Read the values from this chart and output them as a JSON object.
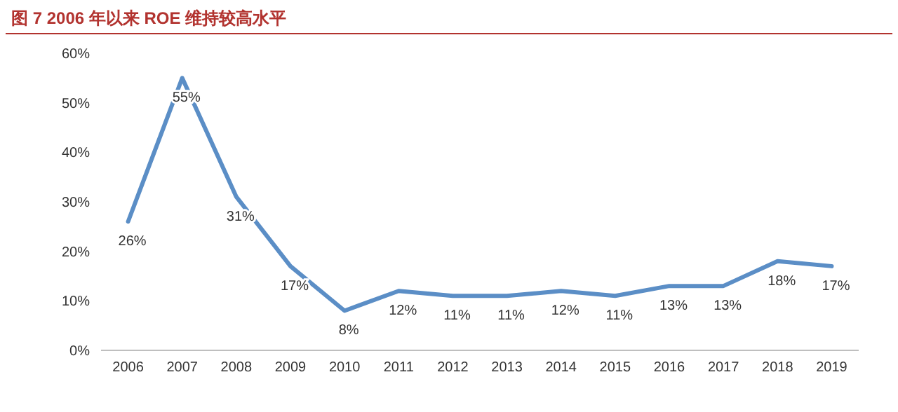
{
  "chart_data": {
    "type": "line",
    "title": "图 7 2006 年以来 ROE 维持较高水平",
    "categories": [
      "2006",
      "2007",
      "2008",
      "2009",
      "2010",
      "2011",
      "2012",
      "2013",
      "2014",
      "2015",
      "2016",
      "2017",
      "2018",
      "2019"
    ],
    "series": [
      {
        "color": "#5b8ec6",
        "values": [
          26,
          55,
          31,
          17,
          8,
          12,
          11,
          11,
          12,
          11,
          13,
          13,
          18,
          17
        ],
        "value_labels": [
          "26%",
          "55%",
          "31%",
          "17%",
          "8%",
          "12%",
          "11%",
          "11%",
          "12%",
          "11%",
          "13%",
          "13%",
          "18%",
          "17%"
        ]
      }
    ],
    "ylim": [
      0,
      60
    ],
    "yticks": [
      {
        "value": 0,
        "label": "0%"
      },
      {
        "value": 10,
        "label": "10%"
      },
      {
        "value": 20,
        "label": "20%"
      },
      {
        "value": 30,
        "label": "30%"
      },
      {
        "value": 40,
        "label": "40%"
      },
      {
        "value": 50,
        "label": "50%"
      },
      {
        "value": 60,
        "label": "60%"
      }
    ],
    "grid": false,
    "marker": "none",
    "line_style": "solid"
  }
}
